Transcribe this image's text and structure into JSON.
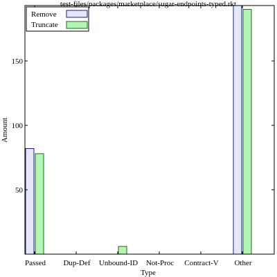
{
  "chart_data": {
    "type": "bar",
    "title": "test-files/packages/marketplace/sugar-endpoints-typed.rkt",
    "xlabel": "Type",
    "ylabel": "Amount",
    "categories": [
      "Passed",
      "Dup-Def",
      "Unbound-ID",
      "Not-Proc",
      "Contract-V",
      "Other"
    ],
    "series": [
      {
        "name": "Remove",
        "values": [
          82,
          0,
          0,
          0,
          0,
          193
        ],
        "fill": "#e6e8fa",
        "stroke": "#1a1a8c"
      },
      {
        "name": "Truncate",
        "values": [
          78,
          0,
          6,
          0,
          0,
          190
        ],
        "fill": "#b3f5b3",
        "stroke": "#1a6b1a"
      }
    ],
    "ylim": [
      0,
      193
    ],
    "yticks": [
      50,
      100,
      150
    ],
    "legend_position": "top-left",
    "grid": false
  }
}
